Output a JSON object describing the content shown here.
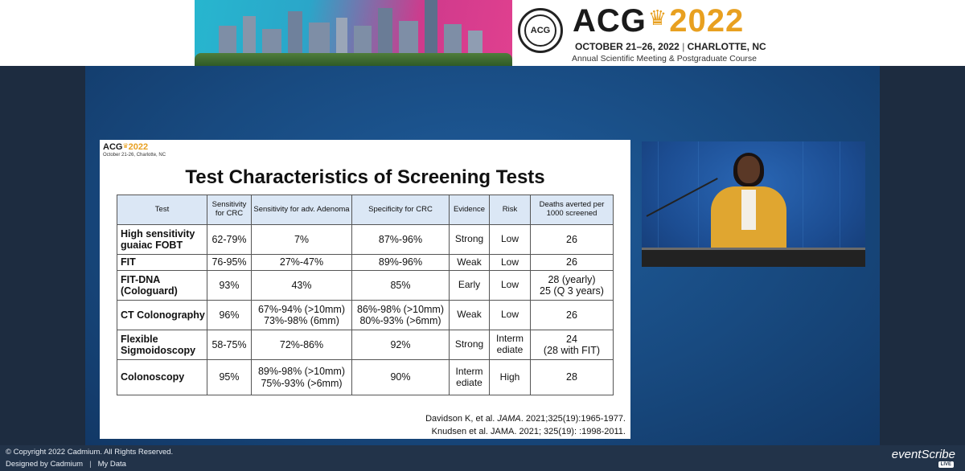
{
  "header": {
    "logo_acg": "ACG",
    "logo_year": "2022",
    "seal_text": "ACG",
    "dates": "OCTOBER 21–26, 2022",
    "location": "CHARLOTTE, NC",
    "meeting": "Annual Scientific Meeting & Postgraduate Course"
  },
  "slide": {
    "logo_acg": "ACG",
    "logo_year": "2022",
    "logo_sub": "October 21-26, Charlotte, NC",
    "title": "Test Characteristics of Screening Tests",
    "columns": [
      "Test",
      "Sensitivity for CRC",
      "Sensitivity for adv. Adenoma",
      "Specificity for CRC",
      "Evidence",
      "Risk",
      "Deaths averted per 1000 screened"
    ],
    "rows": [
      {
        "test": "High sensitivity guaiac FOBT",
        "sens_crc": "62-79%",
        "sens_adenoma": "7%",
        "spec_crc": "87%-96%",
        "evidence": "Strong",
        "risk": "Low",
        "deaths": "26"
      },
      {
        "test": "FIT",
        "sens_crc": "76-95%",
        "sens_adenoma": "27%-47%",
        "spec_crc": "89%-96%",
        "evidence": "Weak",
        "risk": "Low",
        "deaths": "26"
      },
      {
        "test": "FIT-DNA (Cologuard)",
        "sens_crc": "93%",
        "sens_adenoma": "43%",
        "spec_crc": "85%",
        "evidence": "Early",
        "risk": "Low",
        "deaths": "28 (yearly)\n25 (Q 3 years)"
      },
      {
        "test": "CT Colonography",
        "sens_crc": "96%",
        "sens_adenoma": "67%-94% (>10mm)\n73%-98% (6mm)",
        "spec_crc": "86%-98% (>10mm)\n80%-93% (>6mm)",
        "evidence": "Weak",
        "risk": "Low",
        "deaths": "26"
      },
      {
        "test": "Flexible Sigmoidoscopy",
        "sens_crc": "58-75%",
        "sens_adenoma": "72%-86%",
        "spec_crc": "92%",
        "evidence": "Strong",
        "risk": "Interm\nediate",
        "deaths": "24\n(28 with FIT)"
      },
      {
        "test": "Colonoscopy",
        "sens_crc": "95%",
        "sens_adenoma": "89%-98% (>10mm)\n75%-93% (>6mm)",
        "spec_crc": "90%",
        "evidence": "Interm\nediate",
        "risk": "High",
        "deaths": "28"
      }
    ],
    "citation1_pre": "Davidson K, et al. ",
    "citation1_journal": "JAMA",
    "citation1_post": ". 2021;325(19):1965-1977.",
    "citation2": "Knudsen et al. JAMA. 2021; 325(19): :1998-2011."
  },
  "footer": {
    "copyright": "© Copyright 2022 Cadmium. All Rights Reserved.",
    "designed_by": "Designed by Cadmium",
    "my_data": "My Data",
    "brand": "eventScribe",
    "brand_badge": "LIVE"
  },
  "colors": {
    "accent_gold": "#e8a020",
    "stage_blue": "#184a80",
    "table_header": "#dbe7f5",
    "footer_bg": "#223349"
  }
}
